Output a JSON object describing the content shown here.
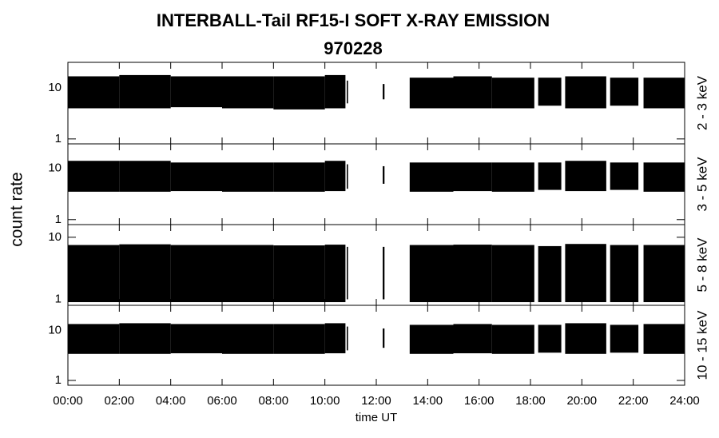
{
  "title": "INTERBALL-Tail RF15-I SOFT X-RAY EMISSION",
  "subtitle": "970228",
  "ylabel": "count rate",
  "xlabel": "time UT",
  "chart_data": [
    {
      "type": "area",
      "label": "2 - 3 keV",
      "log_y": true,
      "color": "#000000",
      "xlim": [
        0,
        24
      ],
      "ylim": [
        0.8,
        32
      ],
      "yticks": [
        1,
        10
      ],
      "xticks": [
        {
          "value": 0,
          "label": "00:00"
        },
        {
          "value": 2,
          "label": "02:00"
        },
        {
          "value": 4,
          "label": "04:00"
        },
        {
          "value": 6,
          "label": "06:00"
        },
        {
          "value": 8,
          "label": "08:00"
        },
        {
          "value": 10,
          "label": "10:00"
        },
        {
          "value": 12,
          "label": "12:00"
        },
        {
          "value": 14,
          "label": "14:00"
        },
        {
          "value": 16,
          "label": "16:00"
        },
        {
          "value": 18,
          "label": "18:00"
        },
        {
          "value": 20,
          "label": "20:00"
        },
        {
          "value": 22,
          "label": "22:00"
        },
        {
          "value": 24,
          "label": "24:00"
        }
      ],
      "segments": [
        {
          "start": 0,
          "end": 2,
          "max": 17,
          "min": 4
        },
        {
          "start": 2,
          "end": 4,
          "max": 18,
          "min": 4
        },
        {
          "start": 4,
          "end": 6,
          "max": 17,
          "min": 4.2
        },
        {
          "start": 6,
          "end": 8,
          "max": 17,
          "min": 4
        },
        {
          "start": 8,
          "end": 10,
          "max": 17,
          "min": 3.8
        },
        {
          "start": 10,
          "end": 10.8,
          "max": 18,
          "min": 4
        },
        {
          "start": 10.85,
          "end": 10.9,
          "max": 14,
          "min": 5
        },
        {
          "start": 12.25,
          "end": 12.32,
          "max": 12,
          "min": 6
        },
        {
          "start": 13.3,
          "end": 15,
          "max": 16,
          "min": 4
        },
        {
          "start": 15,
          "end": 16.5,
          "max": 17,
          "min": 4
        },
        {
          "start": 16.5,
          "end": 18.15,
          "max": 16,
          "min": 4
        },
        {
          "start": 18.3,
          "end": 19.2,
          "max": 16,
          "min": 4.5
        },
        {
          "start": 19.35,
          "end": 20.95,
          "max": 17,
          "min": 4
        },
        {
          "start": 21.1,
          "end": 22.2,
          "max": 16,
          "min": 4.5
        },
        {
          "start": 22.4,
          "end": 24,
          "max": 16,
          "min": 4
        }
      ]
    },
    {
      "type": "area",
      "label": "3 - 5 keV",
      "log_y": true,
      "color": "#000000",
      "xlim": [
        0,
        24
      ],
      "ylim": [
        0.8,
        30
      ],
      "yticks": [
        1,
        10
      ],
      "segments": [
        {
          "start": 0,
          "end": 2,
          "max": 14,
          "min": 3.5
        },
        {
          "start": 2,
          "end": 4,
          "max": 14,
          "min": 3.5
        },
        {
          "start": 4,
          "end": 6,
          "max": 13,
          "min": 3.6
        },
        {
          "start": 6,
          "end": 8,
          "max": 13,
          "min": 3.5
        },
        {
          "start": 8,
          "end": 10,
          "max": 13,
          "min": 3.5
        },
        {
          "start": 10,
          "end": 10.8,
          "max": 14,
          "min": 3.6
        },
        {
          "start": 10.85,
          "end": 10.9,
          "max": 12,
          "min": 4
        },
        {
          "start": 12.25,
          "end": 12.32,
          "max": 11,
          "min": 5
        },
        {
          "start": 13.3,
          "end": 15,
          "max": 13,
          "min": 3.5
        },
        {
          "start": 15,
          "end": 16.5,
          "max": 13,
          "min": 3.6
        },
        {
          "start": 16.5,
          "end": 18.15,
          "max": 13,
          "min": 3.5
        },
        {
          "start": 18.3,
          "end": 19.2,
          "max": 13,
          "min": 3.8
        },
        {
          "start": 19.35,
          "end": 20.95,
          "max": 14,
          "min": 3.6
        },
        {
          "start": 21.1,
          "end": 22.2,
          "max": 13,
          "min": 3.8
        },
        {
          "start": 22.4,
          "end": 24,
          "max": 13,
          "min": 3.5
        }
      ]
    },
    {
      "type": "area",
      "label": "5 - 8 keV",
      "log_y": true,
      "color": "#000000",
      "xlim": [
        0,
        24
      ],
      "ylim": [
        0.8,
        16
      ],
      "yticks": [
        1,
        10
      ],
      "segments": [
        {
          "start": 0,
          "end": 2,
          "max": 7.5,
          "min": 0.9
        },
        {
          "start": 2,
          "end": 4,
          "max": 7.7,
          "min": 0.9
        },
        {
          "start": 4,
          "end": 6,
          "max": 7.5,
          "min": 0.9
        },
        {
          "start": 6,
          "end": 8,
          "max": 7.5,
          "min": 0.9
        },
        {
          "start": 8,
          "end": 10,
          "max": 7.4,
          "min": 0.9
        },
        {
          "start": 10,
          "end": 10.8,
          "max": 7.6,
          "min": 0.9
        },
        {
          "start": 10.85,
          "end": 10.9,
          "max": 7,
          "min": 1
        },
        {
          "start": 12.25,
          "end": 12.32,
          "max": 7,
          "min": 1
        },
        {
          "start": 13.3,
          "end": 15,
          "max": 7.5,
          "min": 0.9
        },
        {
          "start": 15,
          "end": 16.5,
          "max": 7.6,
          "min": 0.9
        },
        {
          "start": 16.5,
          "end": 18.15,
          "max": 7.5,
          "min": 0.9
        },
        {
          "start": 18.3,
          "end": 19.2,
          "max": 7.2,
          "min": 0.9
        },
        {
          "start": 19.35,
          "end": 20.95,
          "max": 7.8,
          "min": 0.9
        },
        {
          "start": 21.1,
          "end": 22.2,
          "max": 7.5,
          "min": 0.9
        },
        {
          "start": 22.4,
          "end": 24,
          "max": 7.5,
          "min": 0.9
        }
      ]
    },
    {
      "type": "area",
      "label": "10 - 15 keV",
      "log_y": true,
      "color": "#000000",
      "xlim": [
        0,
        24
      ],
      "ylim": [
        0.8,
        32
      ],
      "yticks": [
        1,
        10
      ],
      "segments": [
        {
          "start": 0,
          "end": 2,
          "max": 13.5,
          "min": 3.4
        },
        {
          "start": 2,
          "end": 4,
          "max": 14,
          "min": 3.4
        },
        {
          "start": 4,
          "end": 6,
          "max": 13.5,
          "min": 3.5
        },
        {
          "start": 6,
          "end": 8,
          "max": 13.5,
          "min": 3.4
        },
        {
          "start": 8,
          "end": 10,
          "max": 13.5,
          "min": 3.4
        },
        {
          "start": 10,
          "end": 10.8,
          "max": 14,
          "min": 3.5
        },
        {
          "start": 10.85,
          "end": 10.9,
          "max": 12,
          "min": 4
        },
        {
          "start": 12.25,
          "end": 12.32,
          "max": 11,
          "min": 4.5
        },
        {
          "start": 13.3,
          "end": 15,
          "max": 13,
          "min": 3.4
        },
        {
          "start": 15,
          "end": 16.5,
          "max": 13.5,
          "min": 3.5
        },
        {
          "start": 16.5,
          "end": 18.15,
          "max": 13,
          "min": 3.4
        },
        {
          "start": 18.3,
          "end": 19.2,
          "max": 13,
          "min": 3.6
        },
        {
          "start": 19.35,
          "end": 20.95,
          "max": 14,
          "min": 3.4
        },
        {
          "start": 21.1,
          "end": 22.2,
          "max": 13,
          "min": 3.6
        },
        {
          "start": 22.4,
          "end": 24,
          "max": 13.5,
          "min": 3.4
        }
      ]
    }
  ]
}
